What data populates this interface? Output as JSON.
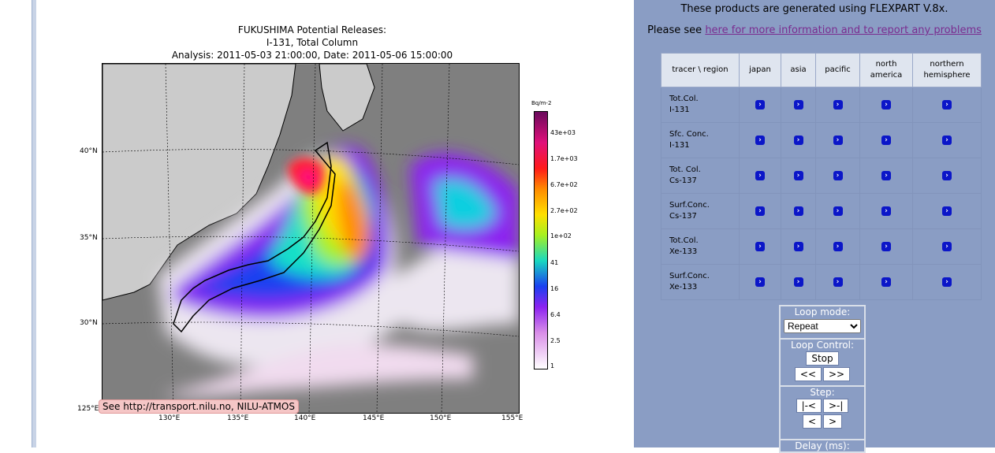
{
  "plot": {
    "title_lines": [
      "FUKUSHIMA Potential Releases:",
      "I-131, Total Column",
      "Analysis: 2011-05-03  21:00:00, Date: 2011-05-06  15:00:00 UTC"
    ],
    "lat_labels": [
      "40°N",
      "35°N",
      "30°N",
      "125°E"
    ],
    "lon_labels": [
      "130°E",
      "135°E",
      "140°E",
      "145°E",
      "150°E",
      "155°E"
    ],
    "colorbar_title": "Bq/m-2",
    "colorbar_labels": [
      "43e+03",
      "1.7e+03",
      "6.7e+02",
      "2.7e+02",
      "1e+02",
      "41",
      "16",
      "6.4",
      "2.5",
      "1"
    ],
    "credit": "See http://transport.nilu.no, NILU-ATMOS"
  },
  "side": {
    "line1": "These products are generated using FLEXPART V.8x.",
    "line2_prefix": "Please see ",
    "line2_link": "here for more information and to report any problems"
  },
  "table": {
    "headers": [
      "tracer \\ region",
      "japan",
      "asia",
      "pacific",
      "north america",
      "northern hemisphere"
    ],
    "rows": [
      {
        "l1": "Tot.Col.",
        "l2": "I-131"
      },
      {
        "l1": "Sfc. Conc.",
        "l2": "I-131"
      },
      {
        "l1": "Tot. Col.",
        "l2": "Cs-137"
      },
      {
        "l1": "Surf.Conc.",
        "l2": "Cs-137"
      },
      {
        "l1": "Tot.Col.",
        "l2": "Xe-133"
      },
      {
        "l1": "Surf.Conc.",
        "l2": "Xe-133"
      }
    ],
    "go_glyph": "›"
  },
  "controls": {
    "loop_mode_label": "Loop mode:",
    "loop_mode_value": "Repeat",
    "loop_control_label": "Loop Control:",
    "stop": "Stop",
    "prev": "<<",
    "next": ">>",
    "step_label": "Step:",
    "first": "|-<",
    "last": ">-|",
    "step_back": "<",
    "step_fwd": ">",
    "delay_label": "Delay (ms):"
  },
  "colors": {
    "sidebar_bg": "#8a9dc4",
    "go_button": "#0b16c8",
    "link": "#7a2c8f"
  }
}
